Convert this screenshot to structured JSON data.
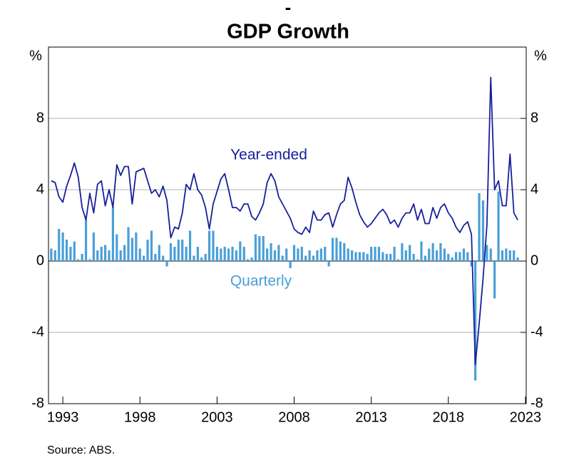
{
  "chart_data": {
    "type": "bar_line",
    "subtitle": "-",
    "title": "GDP Growth",
    "ylabel": "%",
    "y2label": "%",
    "source": "Source:   ABS.",
    "annotations": [
      "Year-ended",
      "Quarterly"
    ],
    "x": [
      1992.25,
      1992.5,
      1992.75,
      1993,
      1993.25,
      1993.5,
      1993.75,
      1994,
      1994.25,
      1994.5,
      1994.75,
      1995,
      1995.25,
      1995.5,
      1995.75,
      1996,
      1996.25,
      1996.5,
      1996.75,
      1997,
      1997.25,
      1997.5,
      1997.75,
      1998,
      1998.25,
      1998.5,
      1998.75,
      1999,
      1999.25,
      1999.5,
      1999.75,
      2000,
      2000.25,
      2000.5,
      2000.75,
      2001,
      2001.25,
      2001.5,
      2001.75,
      2002,
      2002.25,
      2002.5,
      2002.75,
      2003,
      2003.25,
      2003.5,
      2003.75,
      2004,
      2004.25,
      2004.5,
      2004.75,
      2005,
      2005.25,
      2005.5,
      2005.75,
      2006,
      2006.25,
      2006.5,
      2006.75,
      2007,
      2007.25,
      2007.5,
      2007.75,
      2008,
      2008.25,
      2008.5,
      2008.75,
      2009,
      2009.25,
      2009.5,
      2009.75,
      2010,
      2010.25,
      2010.5,
      2010.75,
      2011,
      2011.25,
      2011.5,
      2011.75,
      2012,
      2012.25,
      2012.5,
      2012.75,
      2013,
      2013.25,
      2013.5,
      2013.75,
      2014,
      2014.25,
      2014.5,
      2014.75,
      2015,
      2015.25,
      2015.5,
      2015.75,
      2016,
      2016.25,
      2016.5,
      2016.75,
      2017,
      2017.25,
      2017.5,
      2017.75,
      2018,
      2018.25,
      2018.5,
      2018.75,
      2019,
      2019.25,
      2019.5,
      2019.75,
      2020,
      2020.25,
      2020.5,
      2020.75,
      2021,
      2021.25,
      2021.5,
      2021.75,
      2022,
      2022.25,
      2022.5
    ],
    "series": [
      {
        "name": "Quarterly",
        "type": "bar",
        "color": "#4a9fd8",
        "values": [
          0.7,
          0.6,
          1.8,
          1.6,
          1.2,
          0.8,
          1.1,
          0.1,
          0.4,
          2.3,
          0.1,
          1.6,
          0.6,
          0.8,
          0.9,
          0.6,
          3.0,
          1.5,
          0.6,
          0.9,
          1.9,
          1.3,
          1.6,
          0.7,
          0.3,
          1.2,
          1.7,
          0.4,
          0.9,
          0.3,
          -0.3,
          1.0,
          0.8,
          1.2,
          1.2,
          0.8,
          1.7,
          0.3,
          0.8,
          0.2,
          0.4,
          1.7,
          1.7,
          0.8,
          0.7,
          0.8,
          0.7,
          0.8,
          0.6,
          1.1,
          0.8,
          0.1,
          0.2,
          1.5,
          1.4,
          1.4,
          0.7,
          1.0,
          0.6,
          0.9,
          0.3,
          0.7,
          -0.4,
          0.9,
          0.7,
          0.8,
          0.3,
          0.6,
          0.3,
          0.6,
          0.7,
          0.8,
          -0.3,
          1.3,
          1.3,
          1.1,
          1.0,
          0.7,
          0.6,
          0.5,
          0.5,
          0.5,
          0.4,
          0.8,
          0.8,
          0.8,
          0.5,
          0.4,
          0.4,
          0.8,
          0.1,
          1.0,
          0.6,
          0.9,
          0.4,
          0.1,
          1.1,
          0.3,
          0.7,
          1.0,
          0.6,
          1.0,
          0.7,
          0.4,
          0.2,
          0.5,
          0.5,
          0.7,
          0.5,
          -0.3,
          -6.7,
          3.8,
          3.4,
          0.9,
          0.7,
          -2.1,
          3.9,
          0.6,
          0.7,
          0.6,
          0.6,
          0.2
        ]
      },
      {
        "name": "Year-ended",
        "type": "line",
        "color": "#16209a",
        "values": [
          4.5,
          4.4,
          3.6,
          3.3,
          4.2,
          4.8,
          5.5,
          4.7,
          3.0,
          2.3,
          3.8,
          2.7,
          4.3,
          4.5,
          3.1,
          4.0,
          3.0,
          5.4,
          4.8,
          5.3,
          5.3,
          3.2,
          5.0,
          5.1,
          5.2,
          4.5,
          3.8,
          4.0,
          3.6,
          4.2,
          3.4,
          1.3,
          1.9,
          1.8,
          2.7,
          4.3,
          4.0,
          4.9,
          4.0,
          3.7,
          3.0,
          1.8,
          3.2,
          3.9,
          4.6,
          4.9,
          4.0,
          3.0,
          3.0,
          2.8,
          3.2,
          3.2,
          2.5,
          2.3,
          2.7,
          3.2,
          4.4,
          4.9,
          4.5,
          3.6,
          3.2,
          2.8,
          2.4,
          1.8,
          1.6,
          1.5,
          1.9,
          1.6,
          2.8,
          2.3,
          2.3,
          2.6,
          2.7,
          1.9,
          2.6,
          3.2,
          3.4,
          4.7,
          4.1,
          3.3,
          2.6,
          2.2,
          1.9,
          2.1,
          2.4,
          2.7,
          2.9,
          2.6,
          2.1,
          2.3,
          1.9,
          2.4,
          2.7,
          2.7,
          3.2,
          2.3,
          2.9,
          2.1,
          2.1,
          3.0,
          2.4,
          3.0,
          3.2,
          2.7,
          2.4,
          1.9,
          1.6,
          2.0,
          2.2,
          1.5,
          -5.8,
          -3.5,
          -1.0,
          2.0,
          10.3,
          4.0,
          4.5,
          3.1,
          3.1,
          6.0,
          2.7,
          2.3
        ]
      }
    ],
    "xlim": [
      1992.07,
      2023.05
    ],
    "xticks": [
      1993,
      1998,
      2003,
      2008,
      2013,
      2018,
      2023
    ],
    "ylim": [
      -8,
      12
    ],
    "yticks": [
      -8,
      -4,
      0,
      4,
      8
    ],
    "y2lim": [
      -8,
      12
    ],
    "y2ticks": [
      -8,
      -4,
      0,
      4,
      8
    ],
    "grid": true
  }
}
